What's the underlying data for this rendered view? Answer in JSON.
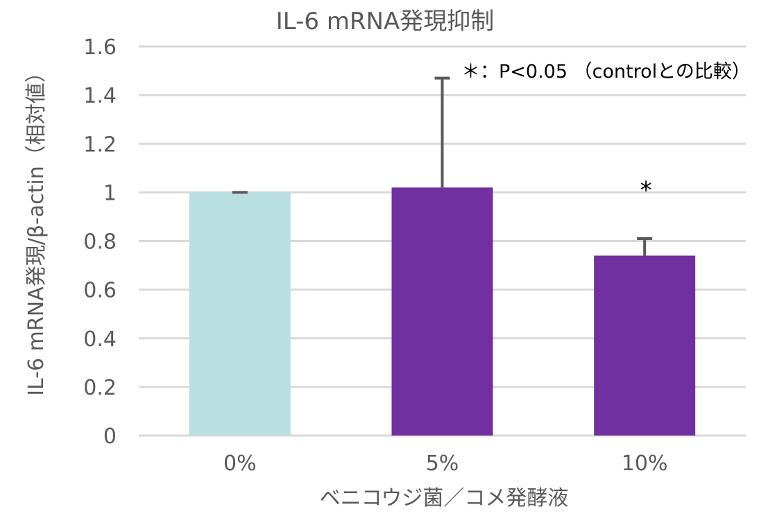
{
  "chart_data": {
    "type": "bar",
    "title": "IL-6 mRNA発現抑制",
    "xlabel": "ベニコウジ菌／コメ発酵液",
    "ylabel": "IL-6 mRNA発現/β-actin（相対値）",
    "categories": [
      "0%",
      "5%",
      "10%"
    ],
    "values": [
      1.0,
      1.02,
      0.74
    ],
    "error_upper": [
      0.0,
      0.45,
      0.07
    ],
    "colors": [
      "#BADFE2",
      "#7030A0",
      "#7030A0"
    ],
    "ylim": [
      0,
      1.6
    ],
    "yticks": [
      "0",
      "0.2",
      "0.4",
      "0.6",
      "0.8",
      "1",
      "1.2",
      "1.4",
      "1.6"
    ],
    "grid": true,
    "significance_markers": [
      "",
      "",
      "*"
    ],
    "annotation": "＊：P<0.05 （controlとの比較）"
  }
}
